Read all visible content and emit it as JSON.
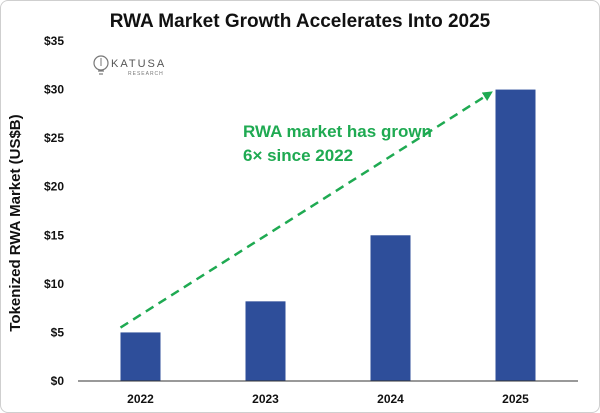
{
  "chart_data": {
    "type": "bar",
    "title": "RWA Market Growth Accelerates Into 2025",
    "ylabel": "Tokenized RWA Market (US$B)",
    "xlabel": "",
    "categories": [
      "2022",
      "2023",
      "2024",
      "2025"
    ],
    "values": [
      5,
      8.2,
      15,
      30
    ],
    "ylim": [
      0,
      35
    ],
    "yticks": [
      0,
      5,
      10,
      15,
      20,
      25,
      30,
      35
    ],
    "ytick_labels": [
      "$0",
      "$5",
      "$10",
      "$15",
      "$20",
      "$25",
      "$30",
      "$35"
    ],
    "grid": false,
    "legend": "none",
    "bar_color": "#2E4E9A",
    "annotation": {
      "lines": [
        "RWA market has grown",
        "6× since 2022"
      ],
      "color": "#1FAA52",
      "arrow_from": {
        "x": "2022",
        "y": 5.5
      },
      "arrow_to": {
        "x": "2025",
        "y": 30
      }
    }
  },
  "logo": {
    "name": "KATUSA",
    "tagline": "RESEARCH"
  },
  "colors": {
    "axis": "#333333",
    "text": "#111111"
  }
}
